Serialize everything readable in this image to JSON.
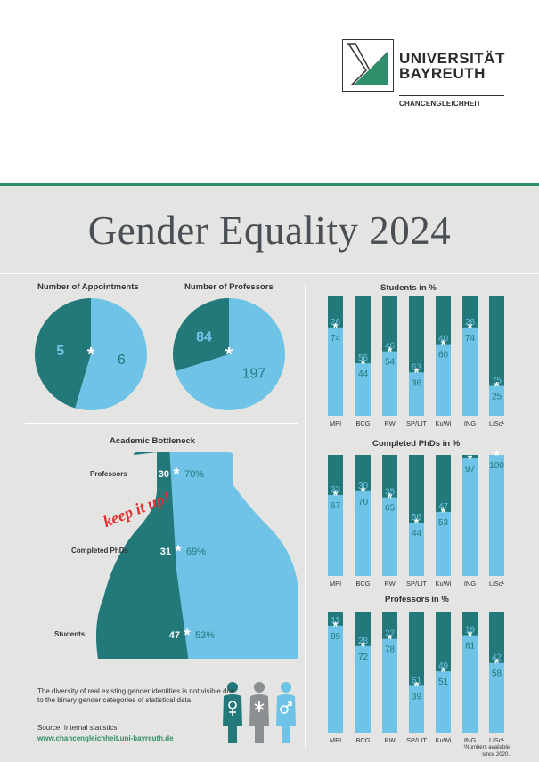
{
  "header": {
    "logo_name_line1": "UNIVERSITÄT",
    "logo_name_line2": "BAYREUTH",
    "logo_sub": "CHANCENGLEICHHEIT"
  },
  "title": "Gender Equality 2024",
  "colors": {
    "dark": "#23787a",
    "light": "#6fc3e6",
    "green": "#2f8f6a"
  },
  "notes": {
    "diversity": "The diversity of real existing gender identities is not visible due to the binary gender categories of statistical data.",
    "source": "Source: Internal statistics",
    "url": "www.chancengleichheit.uni-bayreuth.de",
    "footnote_line1": "¹Numbers available",
    "footnote_line2": "since 2020."
  },
  "gender_icons": [
    "female-symbol",
    "asterisk-symbol",
    "male-symbol"
  ],
  "chart_data": [
    {
      "type": "pie",
      "title": "Number of Appointments",
      "slices": [
        {
          "value": 5,
          "label": "5",
          "color": "#23787a"
        },
        {
          "value": 6,
          "label": "6",
          "color": "#6fc3e6"
        }
      ]
    },
    {
      "type": "pie",
      "title": "Number of Professors",
      "slices": [
        {
          "value": 84,
          "label": "84",
          "color": "#23787a"
        },
        {
          "value": 197,
          "label": "197",
          "color": "#6fc3e6"
        }
      ]
    },
    {
      "type": "bar",
      "title": "Academic Bottleneck",
      "annotation": "keep it up!",
      "categories": [
        "Professors",
        "Completed PhDs",
        "Students"
      ],
      "series": [
        {
          "values": [
            30,
            31,
            47
          ],
          "labels": [
            "30%",
            "31%",
            "47%"
          ]
        },
        {
          "values": [
            70,
            69,
            53
          ],
          "labels": [
            "70%",
            "69%",
            "53%"
          ]
        }
      ]
    },
    {
      "type": "bar",
      "title": "Students in %",
      "categories": [
        "MPI",
        "BCG",
        "RW",
        "SP/LIT",
        "KuWi",
        "ING",
        "LiSc¹"
      ],
      "series": [
        {
          "values": [
            26,
            56,
            46,
            63,
            40,
            26,
            75
          ]
        },
        {
          "values": [
            74,
            44,
            54,
            36,
            60,
            74,
            25
          ]
        }
      ]
    },
    {
      "type": "bar",
      "title": "Completed PhDs in %",
      "categories": [
        "MPI",
        "BCG",
        "RW",
        "SP/LIT",
        "KuWi",
        "ING",
        "LiSc¹"
      ],
      "series": [
        {
          "values": [
            33,
            30,
            35,
            56,
            47,
            3,
            0
          ],
          "labels": [
            "33",
            "30",
            "35",
            "56",
            "47",
            "",
            ""
          ]
        },
        {
          "values": [
            67,
            70,
            65,
            44,
            53,
            97,
            100
          ]
        }
      ]
    },
    {
      "type": "bar",
      "title": "Professors in %",
      "categories": [
        "MPI",
        "BCG",
        "RW",
        "SP/LIT",
        "KuWi",
        "ING",
        "LiSc¹"
      ],
      "series": [
        {
          "values": [
            11,
            28,
            22,
            61,
            49,
            19,
            42
          ]
        },
        {
          "values": [
            89,
            72,
            78,
            39,
            51,
            81,
            58
          ]
        }
      ]
    }
  ]
}
